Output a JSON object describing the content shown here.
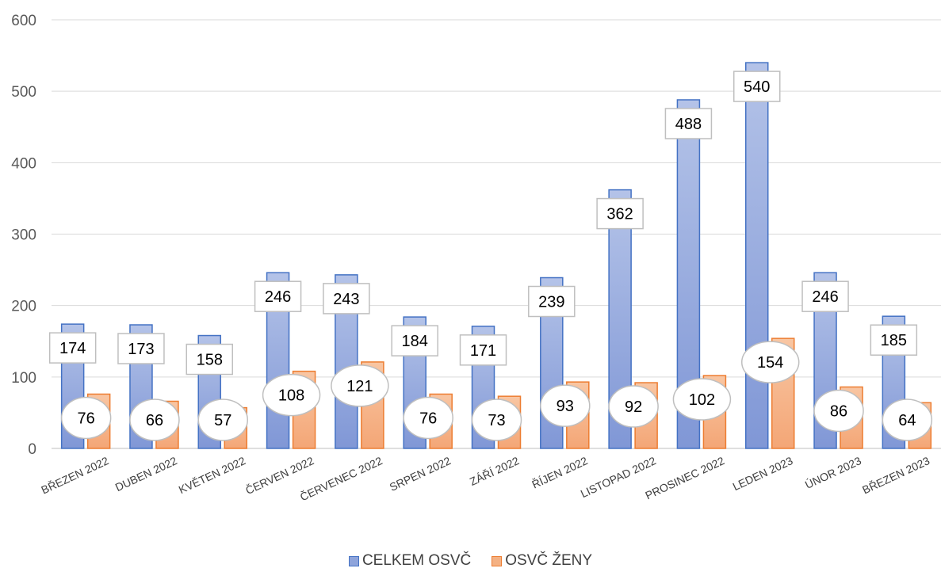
{
  "chart_data": {
    "type": "bar",
    "categories": [
      "BŘEZEN 2022",
      "DUBEN 2022",
      "KVĚTEN 2022",
      "ČERVEN 2022",
      "ČERVENEC 2022",
      "SRPEN 2022",
      "ZÁŘÍ 2022",
      "ŘÍJEN 2022",
      "LISTOPAD 2022",
      "PROSINEC 2022",
      "LEDEN 2023",
      "ÚNOR 2023",
      "BŘEZEN 2023"
    ],
    "series": [
      {
        "name": "CELKEM OSVČ",
        "values": [
          174,
          173,
          158,
          246,
          243,
          184,
          171,
          239,
          362,
          488,
          540,
          246,
          185
        ],
        "color": "#8EA4DB",
        "border": "#4472C4",
        "label_shape": "rectangle"
      },
      {
        "name": "OSVČ ŽENY",
        "values": [
          76,
          66,
          57,
          108,
          121,
          76,
          73,
          93,
          92,
          102,
          154,
          86,
          64
        ],
        "color": "#F4B183",
        "border": "#ED7D31",
        "label_shape": "ellipse"
      }
    ],
    "ylim": [
      0,
      600
    ],
    "yticks": [
      0,
      100,
      200,
      300,
      400,
      500,
      600
    ],
    "grid": true,
    "legend_position": "bottom",
    "title": "",
    "xlabel": "",
    "ylabel": ""
  }
}
